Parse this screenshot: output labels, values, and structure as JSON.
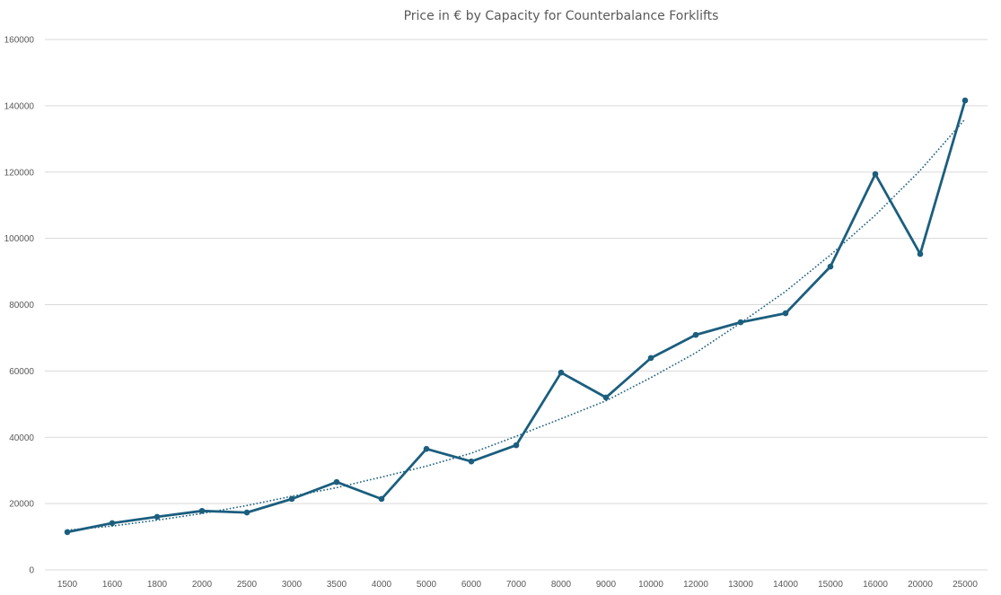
{
  "chart_data": {
    "type": "line",
    "title": "Price in € by Capacity for Counterbalance Forklifts",
    "xlabel": "",
    "ylabel": "",
    "categories": [
      "1500",
      "1600",
      "1800",
      "2000",
      "2500",
      "3000",
      "3500",
      "4000",
      "5000",
      "6000",
      "7000",
      "8000",
      "9000",
      "10000",
      "12000",
      "13000",
      "14000",
      "15000",
      "16000",
      "20000",
      "25000"
    ],
    "series": [
      {
        "name": "Price",
        "color": "#1b5e7e",
        "markers": true,
        "values": [
          11400,
          14100,
          16000,
          17800,
          17300,
          21400,
          26500,
          21400,
          36500,
          32700,
          37600,
          59500,
          52000,
          63900,
          70900,
          74700,
          77400,
          91500,
          119400,
          95300,
          141600
        ]
      }
    ],
    "trendline": {
      "type": "polynomial",
      "style": "dotted",
      "color": "#1b5e7e",
      "values": [
        12000,
        13200,
        15000,
        17000,
        19400,
        22200,
        24800,
        28000,
        31300,
        35200,
        40300,
        45600,
        51000,
        58000,
        65500,
        74500,
        84000,
        95000,
        107000,
        120500,
        136000
      ]
    },
    "yticks": [
      0,
      20000,
      40000,
      60000,
      80000,
      100000,
      120000,
      140000,
      160000
    ],
    "ylim": [
      0,
      160000
    ],
    "grid": true,
    "legend": "none"
  }
}
